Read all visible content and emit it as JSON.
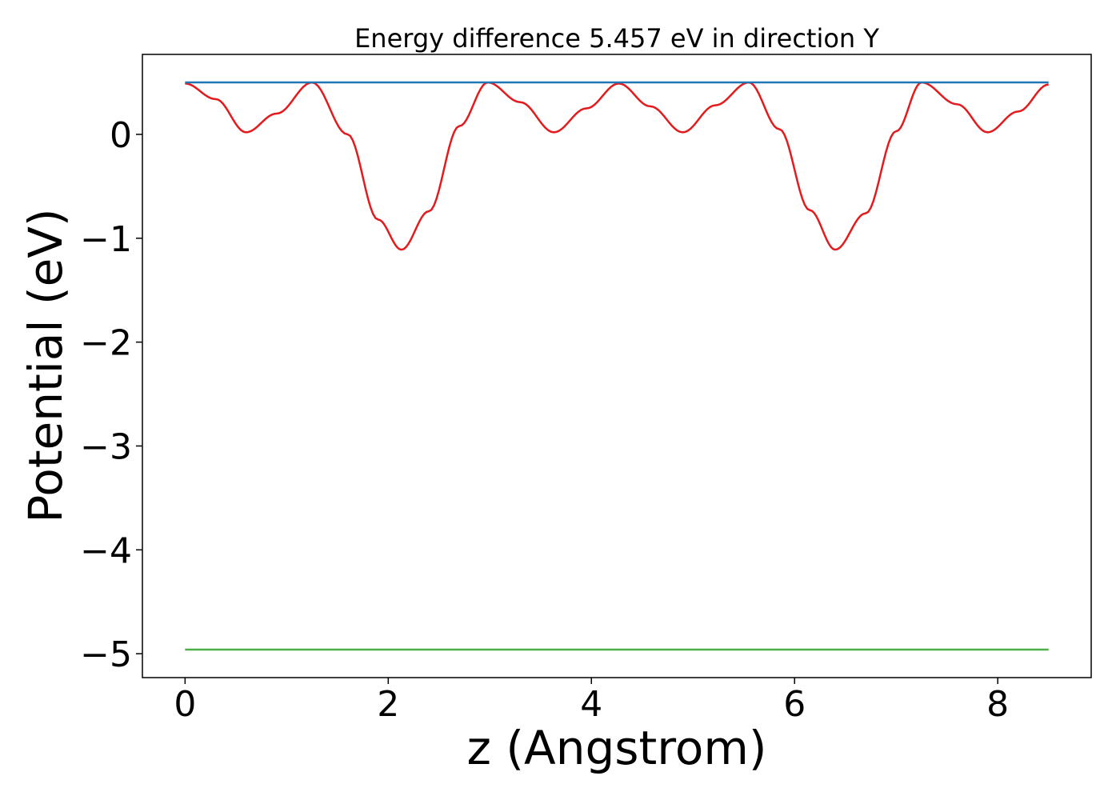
{
  "chart_data": {
    "type": "line",
    "title": "Energy difference 5.457 eV in direction Y",
    "xlabel": "z (Angstrom)",
    "ylabel": "Potential (eV)",
    "xlim": [
      -0.42,
      8.92
    ],
    "ylim": [
      -5.23,
      0.77
    ],
    "xticks": [
      0,
      2,
      4,
      6,
      8
    ],
    "xtick_labels": [
      "0",
      "2",
      "4",
      "6",
      "8"
    ],
    "yticks": [
      0,
      -1,
      -2,
      -3,
      -4,
      -5
    ],
    "ytick_labels": [
      "0",
      "−1",
      "−2",
      "−3",
      "−4",
      "−5"
    ],
    "grid": false,
    "legend": "none",
    "series": [
      {
        "color": "#e41a1c",
        "x": [
          0,
          0.3,
          0.6,
          0.9,
          1.25,
          1.6,
          1.9,
          2.13,
          2.4,
          2.7,
          2.98,
          3.3,
          3.63,
          3.95,
          4.27,
          4.58,
          4.9,
          5.22,
          5.55,
          5.85,
          6.15,
          6.4,
          6.7,
          7.0,
          7.25,
          7.6,
          7.9,
          8.2,
          8.5
        ],
        "y": [
          0.49,
          0.34,
          0.02,
          0.2,
          0.5,
          0.0,
          -0.82,
          -1.11,
          -0.74,
          0.08,
          0.5,
          0.31,
          0.02,
          0.25,
          0.49,
          0.27,
          0.02,
          0.28,
          0.5,
          0.05,
          -0.73,
          -1.11,
          -0.76,
          0.03,
          0.5,
          0.29,
          0.02,
          0.22,
          0.48
        ]
      },
      {
        "color": "#1f77b4",
        "x": [
          0,
          8.5
        ],
        "y": [
          0.5,
          0.5
        ]
      },
      {
        "color": "#4daf4a",
        "x": [
          0,
          8.5
        ],
        "y": [
          -4.96,
          -4.96
        ]
      }
    ]
  }
}
